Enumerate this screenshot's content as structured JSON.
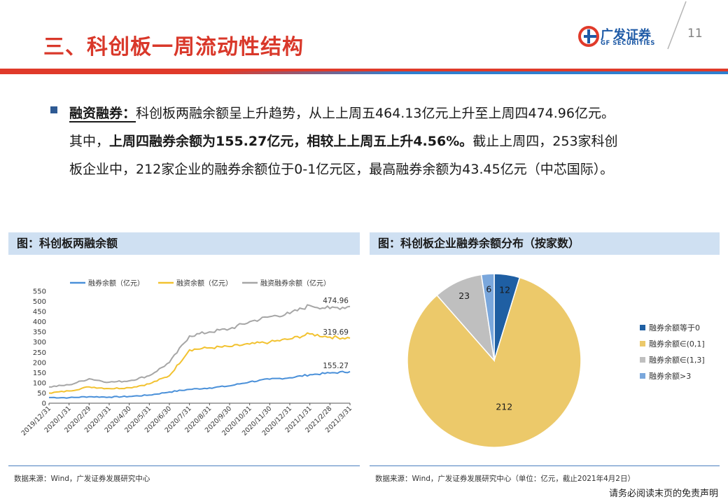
{
  "header": {
    "title": "三、科创板一周流动性结构",
    "logo_cn": "广发证券",
    "logo_en": "GF SECURITIES",
    "page_number": "11"
  },
  "body": {
    "lead": "融资融券：",
    "line1_rest": "科创板两融余额呈上升趋势，从上上周五464.13亿元上升至上周四474.96亿元。",
    "line2_a": "其中，",
    "line2_bold": "上周四融券余额为155.27亿元，相较上上周五上升4.56%。",
    "line2_b": "截止上周四，253家科创",
    "line3": "板企业中，212家企业的融券余额位于0-1亿元区，最高融券余额为43.45亿元（中芯国际）。"
  },
  "left_panel": {
    "header": "图：科创板两融余额",
    "source": "数据来源：Wind，广发证券发展研究中心"
  },
  "right_panel": {
    "header": "图：科创板企业融券余额分布（按家数）",
    "source": "数据来源：Wind，广发证券发展研究中心（单位：亿元，截止2021年4月2日）"
  },
  "footer": {
    "disclaimer": "请务必阅读末页的免责声明"
  },
  "colors": {
    "blue": "#4a90d9",
    "yellow": "#f2c230",
    "gray": "#a6a6a6",
    "navy": "#1f5fa3",
    "pie_yellow": "#ecc96a",
    "pie_gray": "#bfbfbf",
    "pie_light": "#7aa7dc"
  },
  "chart_data": [
    {
      "type": "line",
      "ylim": [
        0,
        550
      ],
      "yticks": [
        "0",
        "50",
        "100",
        "150",
        "200",
        "250",
        "300",
        "350",
        "400",
        "450",
        "500",
        "550"
      ],
      "categories": [
        "2019/12/31",
        "2020/1/31",
        "2020/2/29",
        "2020/3/31",
        "2020/4/30",
        "2020/5/31",
        "2020/6/30",
        "2020/7/31",
        "2020/8/31",
        "2020/9/30",
        "2020/10/31",
        "2020/11/30",
        "2020/12/31",
        "2021/1/31",
        "2021/2/28",
        "2021/3/31"
      ],
      "series": [
        {
          "name": "融券余额（亿元）",
          "color": "#4a90d9",
          "values": [
            28,
            27,
            32,
            30,
            33,
            40,
            55,
            68,
            75,
            85,
            105,
            118,
            125,
            140,
            148,
            155.27
          ],
          "end_label": "155.27"
        },
        {
          "name": "融资余额（亿元）",
          "color": "#f2c230",
          "values": [
            50,
            60,
            80,
            72,
            76,
            95,
            135,
            262,
            272,
            278,
            290,
            300,
            315,
            340,
            325,
            319.69
          ],
          "end_label": "319.69"
        },
        {
          "name": "融资融券余额（亿元）",
          "color": "#a6a6a6",
          "values": [
            80,
            90,
            120,
            103,
            110,
            135,
            200,
            330,
            350,
            365,
            400,
            425,
            440,
            480,
            465,
            474.96
          ],
          "end_label": "474.96"
        }
      ]
    },
    {
      "type": "pie",
      "slices": [
        {
          "name": "融券余额等于0",
          "value": 12,
          "label": "12",
          "color": "#1f5fa3"
        },
        {
          "name": "融券余额∈(0,1]",
          "value": 212,
          "label": "212",
          "color": "#ecc96a"
        },
        {
          "name": "融券余额∈(1,3]",
          "value": 23,
          "label": "23",
          "color": "#bfbfbf"
        },
        {
          "name": "融券余额>3",
          "value": 6,
          "label": "6",
          "color": "#7aa7dc"
        }
      ]
    }
  ]
}
